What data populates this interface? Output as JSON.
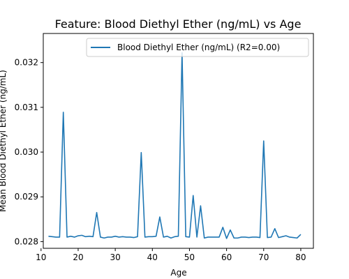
{
  "chart_data": {
    "type": "line",
    "title": "Feature: Blood Diethyl Ether (ng/mL) vs Age",
    "xlabel": "Age",
    "ylabel": "Mean Blood Diethyl Ether (ng/mL)",
    "xlim": [
      10.6,
      83.4
    ],
    "ylim": [
      0.02785,
      0.03265
    ],
    "xticks": [
      10,
      20,
      30,
      40,
      50,
      60,
      70,
      80
    ],
    "yticks": [
      0.028,
      0.029,
      0.03,
      0.031,
      0.032
    ],
    "ytick_labels": [
      "0.028",
      "0.029",
      "0.030",
      "0.031",
      "0.032"
    ],
    "grid": false,
    "legend_position": "top-right",
    "colors": {
      "series": "#1f77b4",
      "axes": "#000000",
      "background": "#ffffff"
    },
    "series": [
      {
        "name": "Blood Diethyl Ether (ng/mL) (R2=0.00)",
        "x": [
          12,
          13,
          14,
          15,
          16,
          17,
          18,
          19,
          20,
          21,
          22,
          23,
          24,
          25,
          26,
          27,
          28,
          29,
          30,
          31,
          32,
          33,
          34,
          35,
          36,
          37,
          38,
          39,
          40,
          41,
          42,
          43,
          44,
          45,
          46,
          47,
          48,
          49,
          50,
          51,
          52,
          53,
          54,
          55,
          56,
          57,
          58,
          59,
          60,
          61,
          62,
          63,
          64,
          65,
          66,
          67,
          68,
          69,
          70,
          71,
          72,
          73,
          74,
          75,
          76,
          77,
          78,
          79,
          80
        ],
        "y": [
          0.02812,
          0.02811,
          0.0281,
          0.0281,
          0.03089,
          0.0281,
          0.02812,
          0.0281,
          0.02813,
          0.02814,
          0.02811,
          0.02812,
          0.02811,
          0.02865,
          0.0281,
          0.02808,
          0.0281,
          0.0281,
          0.02812,
          0.0281,
          0.02811,
          0.0281,
          0.0281,
          0.02809,
          0.02811,
          0.02999,
          0.0281,
          0.02811,
          0.02811,
          0.02812,
          0.02855,
          0.0281,
          0.02812,
          0.02808,
          0.02811,
          0.02812,
          0.03222,
          0.02811,
          0.0281,
          0.02903,
          0.0281,
          0.0288,
          0.02808,
          0.0281,
          0.0281,
          0.0281,
          0.0281,
          0.02832,
          0.02807,
          0.02826,
          0.02808,
          0.02808,
          0.0281,
          0.0281,
          0.02809,
          0.0281,
          0.0281,
          0.02809,
          0.03025,
          0.02809,
          0.0281,
          0.02829,
          0.02809,
          0.02811,
          0.02813,
          0.0281,
          0.02809,
          0.02808,
          0.02816
        ]
      }
    ]
  }
}
